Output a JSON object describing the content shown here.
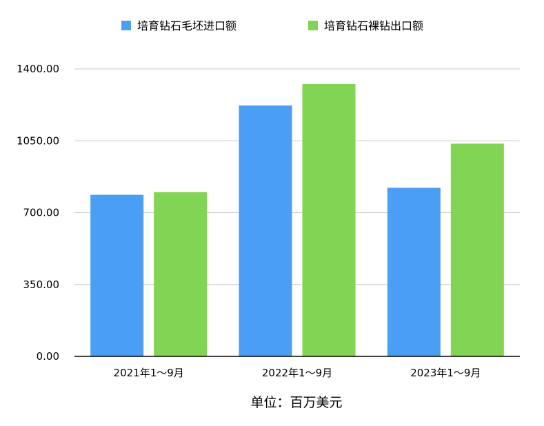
{
  "chart_data": {
    "type": "bar",
    "categories": [
      "2021年1～9月",
      "2022年1～9月",
      "2023年1～9月"
    ],
    "series": [
      {
        "name": "培育钻石毛坯进口额",
        "color": "#4a9ff5",
        "values": [
          787,
          1222,
          821
        ]
      },
      {
        "name": "培育钻石裸钻出口额",
        "color": "#82d455",
        "values": [
          800,
          1326,
          1036
        ]
      }
    ],
    "yticks": [
      "0.00",
      "350.00",
      "700.00",
      "1050.00",
      "1400.00"
    ],
    "ylim": [
      0,
      1400
    ],
    "grid": true,
    "legend_position": "top",
    "unit_label": "单位：百万美元"
  }
}
